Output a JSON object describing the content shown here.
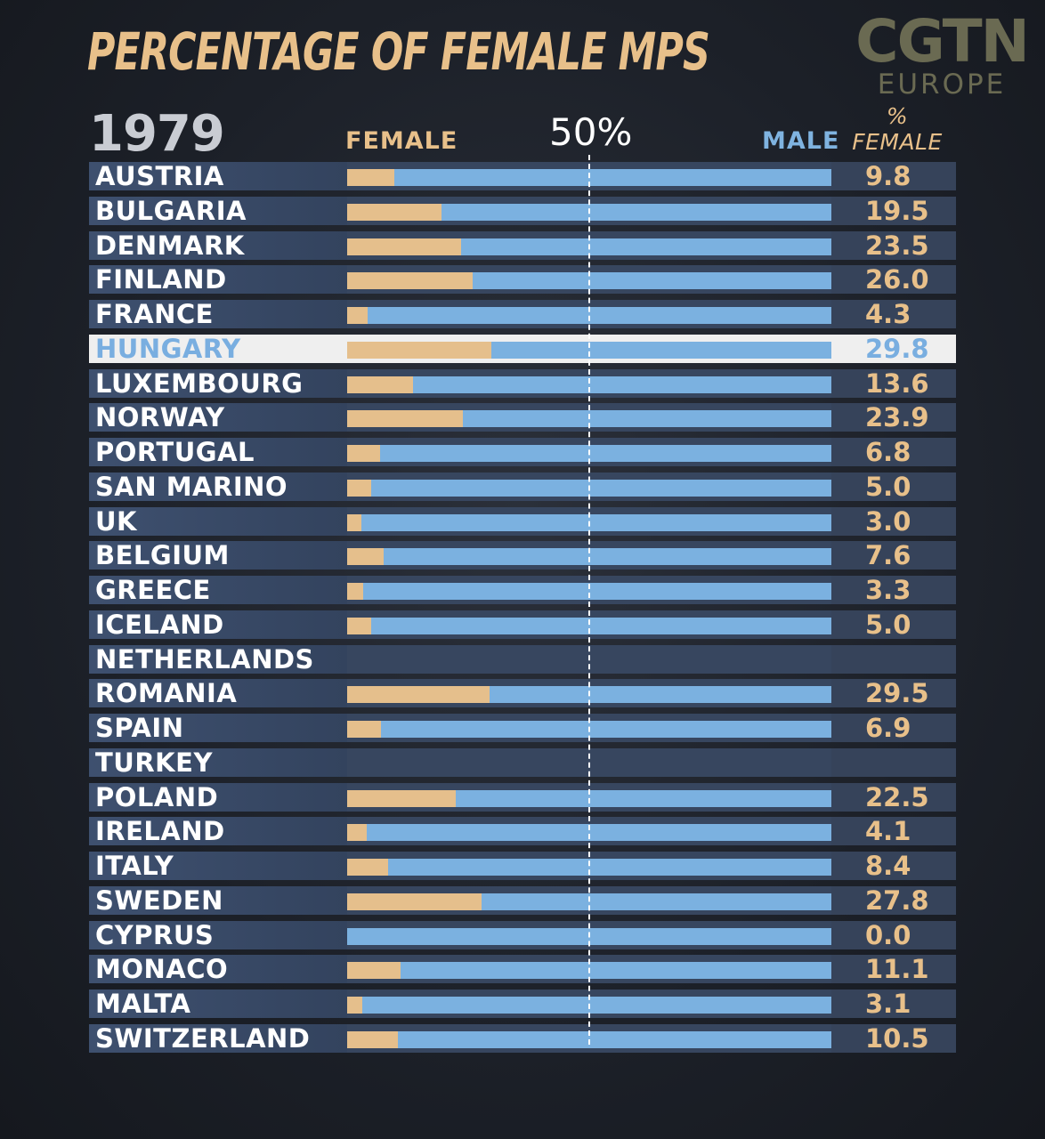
{
  "header": {
    "title": "PERCENTAGE OF FEMALE MPS",
    "logo_top": "CGTN",
    "logo_bottom": "EUROPE",
    "year": "1979",
    "female_label": "FEMALE",
    "midpoint_label": "50%",
    "male_label": "MALE",
    "pct_label_top": "%",
    "pct_label_bottom": "FEMALE"
  },
  "colors": {
    "female": "#e5bf8c",
    "male": "#7bb1e0",
    "highlight_bg": "#efefef",
    "highlight_text": "#79aee0"
  },
  "chart_data": {
    "type": "bar",
    "orientation": "horizontal-stacked-100",
    "title": "PERCENTAGE OF FEMALE MPS",
    "year": "1979",
    "series": [
      {
        "name": "FEMALE",
        "color": "#e5bf8c"
      },
      {
        "name": "MALE",
        "color": "#7bb1e0"
      }
    ],
    "reference_line": {
      "value": 50,
      "label": "50%"
    },
    "highlight": "HUNGARY",
    "rows": [
      {
        "country": "AUSTRIA",
        "female_pct": 9.8,
        "label": "9.8"
      },
      {
        "country": "BULGARIA",
        "female_pct": 19.5,
        "label": "19.5"
      },
      {
        "country": "DENMARK",
        "female_pct": 23.5,
        "label": "23.5"
      },
      {
        "country": "FINLAND",
        "female_pct": 26.0,
        "label": "26.0"
      },
      {
        "country": "FRANCE",
        "female_pct": 4.3,
        "label": "4.3"
      },
      {
        "country": "HUNGARY",
        "female_pct": 29.8,
        "label": "29.8"
      },
      {
        "country": "LUXEMBOURG",
        "female_pct": 13.6,
        "label": "13.6"
      },
      {
        "country": "NORWAY",
        "female_pct": 23.9,
        "label": "23.9"
      },
      {
        "country": "PORTUGAL",
        "female_pct": 6.8,
        "label": "6.8"
      },
      {
        "country": "SAN MARINO",
        "female_pct": 5.0,
        "label": "5.0"
      },
      {
        "country": "UK",
        "female_pct": 3.0,
        "label": "3.0"
      },
      {
        "country": "BELGIUM",
        "female_pct": 7.6,
        "label": "7.6"
      },
      {
        "country": "GREECE",
        "female_pct": 3.3,
        "label": "3.3"
      },
      {
        "country": "ICELAND",
        "female_pct": 5.0,
        "label": "5.0"
      },
      {
        "country": "NETHERLANDS",
        "female_pct": null,
        "label": ""
      },
      {
        "country": "ROMANIA",
        "female_pct": 29.5,
        "label": "29.5"
      },
      {
        "country": "SPAIN",
        "female_pct": 6.9,
        "label": "6.9"
      },
      {
        "country": "TURKEY",
        "female_pct": null,
        "label": ""
      },
      {
        "country": "POLAND",
        "female_pct": 22.5,
        "label": "22.5"
      },
      {
        "country": "IRELAND",
        "female_pct": 4.1,
        "label": "4.1"
      },
      {
        "country": "ITALY",
        "female_pct": 8.4,
        "label": "8.4"
      },
      {
        "country": "SWEDEN",
        "female_pct": 27.8,
        "label": "27.8"
      },
      {
        "country": "CYPRUS",
        "female_pct": 0.0,
        "label": "0.0"
      },
      {
        "country": "MONACO",
        "female_pct": 11.1,
        "label": "11.1"
      },
      {
        "country": "MALTA",
        "female_pct": 3.1,
        "label": "3.1"
      },
      {
        "country": "SWITZERLAND",
        "female_pct": 10.5,
        "label": "10.5"
      }
    ]
  }
}
